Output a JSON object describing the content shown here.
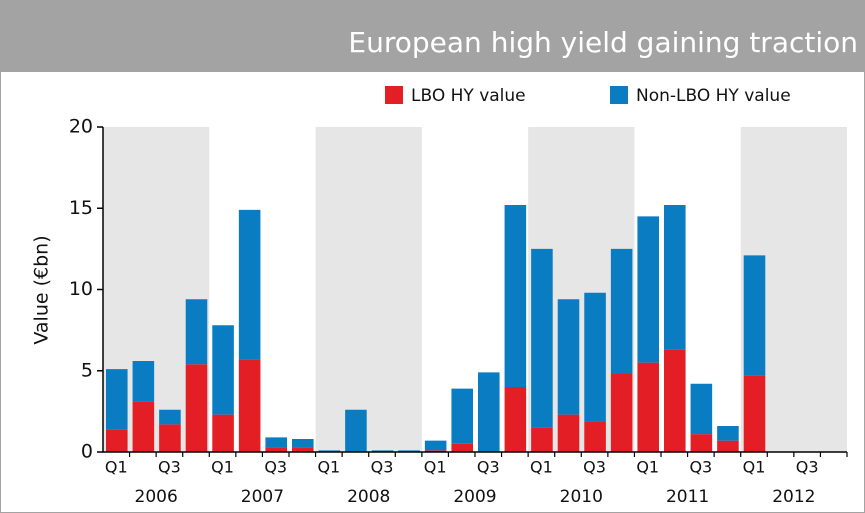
{
  "chart_data": {
    "type": "stacked-bar",
    "title": "European high yield gaining traction",
    "ylabel": "Value (€bn)",
    "categories": [
      "Q1",
      null,
      "Q3",
      null,
      "Q1",
      null,
      "Q3",
      null,
      "Q1",
      null,
      "Q3",
      null,
      "Q1",
      null,
      "Q3",
      null,
      "Q1",
      null,
      "Q3",
      null,
      "Q1",
      null,
      "Q3",
      null,
      "Q1",
      null,
      "Q3",
      null
    ],
    "years": [
      "2006",
      "2007",
      "2008",
      "2009",
      "2010",
      "2011",
      "2012"
    ],
    "series": [
      {
        "name": "LBO HY value",
        "color": "#e31e24",
        "values": [
          1.4,
          3.1,
          1.7,
          5.4,
          2.3,
          5.7,
          0.3,
          0.3,
          0,
          0,
          0,
          0,
          0.1,
          0.5,
          0,
          4.0,
          1.5,
          2.3,
          1.9,
          4.8,
          5.5,
          6.3,
          1.1,
          0.7,
          4.7,
          0,
          0,
          0
        ]
      },
      {
        "name": "Non-LBO HY value",
        "color": "#0a7dc2",
        "values": [
          3.7,
          2.5,
          0.9,
          4.0,
          5.5,
          9.2,
          0.6,
          0.5,
          0.1,
          2.6,
          0.1,
          0.1,
          0.6,
          3.4,
          4.9,
          11.2,
          11.0,
          7.1,
          7.9,
          7.7,
          9.0,
          8.9,
          3.1,
          0.9,
          7.4,
          0,
          0,
          0
        ]
      }
    ],
    "ylim": [
      0,
      20
    ],
    "yticks": [
      0,
      5,
      10,
      15,
      20
    ]
  }
}
